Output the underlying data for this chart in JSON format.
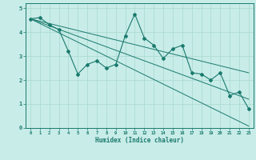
{
  "title": "",
  "xlabel": "Humidex (Indice chaleur)",
  "ylabel": "",
  "bg_color": "#c8ece8",
  "line_color": "#1a7a6e",
  "grid_color": "#a8d8d0",
  "xlim": [
    -0.5,
    23.5
  ],
  "ylim": [
    0,
    5.2
  ],
  "xticks": [
    0,
    1,
    2,
    3,
    4,
    5,
    6,
    7,
    8,
    9,
    10,
    11,
    12,
    13,
    14,
    15,
    16,
    17,
    18,
    19,
    20,
    21,
    22,
    23
  ],
  "yticks": [
    0,
    1,
    2,
    3,
    4,
    5
  ],
  "data_x": [
    0,
    1,
    2,
    3,
    4,
    5,
    6,
    7,
    8,
    9,
    10,
    11,
    12,
    13,
    14,
    15,
    16,
    17,
    18,
    19,
    20,
    21,
    22,
    23
  ],
  "data_y": [
    4.55,
    4.6,
    4.3,
    4.1,
    3.2,
    2.25,
    2.65,
    2.8,
    2.5,
    2.65,
    3.85,
    4.75,
    3.75,
    3.45,
    2.9,
    3.3,
    3.45,
    2.3,
    2.25,
    2.0,
    2.3,
    1.35,
    1.5,
    0.8
  ],
  "upper_line_x": [
    0,
    23
  ],
  "upper_line_y": [
    4.55,
    2.3
  ],
  "lower_line_x": [
    0,
    23
  ],
  "lower_line_y": [
    4.55,
    0.08
  ],
  "mid_line_x": [
    0,
    23
  ],
  "mid_line_y": [
    4.55,
    1.2
  ]
}
